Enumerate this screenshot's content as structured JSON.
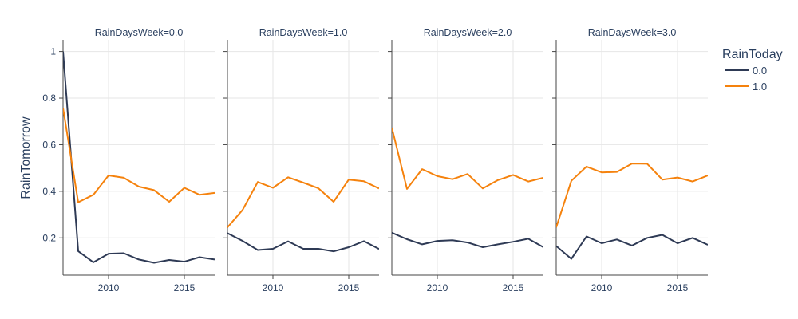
{
  "chart_data": {
    "type": "line",
    "ylabel": "RainTomorrow",
    "xlim": [
      2007,
      2017
    ],
    "ylim": [
      0.04,
      1.05
    ],
    "x_ticks": [
      2010,
      2015
    ],
    "y_ticks": [
      0.2,
      0.4,
      0.6,
      0.8,
      1
    ],
    "y_tick_labels": [
      "0.2",
      "0.4",
      "0.6",
      "0.8",
      "1"
    ],
    "x_tick_labels": [
      "2010",
      "2015"
    ],
    "grid": true,
    "legend": {
      "title": "RainToday",
      "placement": "top-right",
      "entries": [
        "0.0",
        "1.0"
      ]
    },
    "colors": {
      "0.0": "#2e3a55",
      "1.0": "#f5820d"
    },
    "x": [
      2007,
      2008,
      2009,
      2010,
      2011,
      2012,
      2013,
      2014,
      2015,
      2016,
      2017
    ],
    "facets": [
      {
        "title": "RainDaysWeek=0.0",
        "series": [
          {
            "name": "0.0",
            "values": [
              1.0,
              0.143,
              0.095,
              0.132,
              0.134,
              0.107,
              0.093,
              0.105,
              0.098,
              0.117,
              0.107
            ]
          },
          {
            "name": "1.0",
            "values": [
              0.757,
              0.353,
              0.385,
              0.468,
              0.458,
              0.42,
              0.405,
              0.355,
              0.415,
              0.385,
              0.393
            ]
          }
        ]
      },
      {
        "title": "RainDaysWeek=1.0",
        "series": [
          {
            "name": "0.0",
            "values": [
              0.22,
              0.187,
              0.148,
              0.153,
              0.185,
              0.153,
              0.153,
              0.142,
              0.16,
              0.186,
              0.152
            ]
          },
          {
            "name": "1.0",
            "values": [
              0.245,
              0.32,
              0.44,
              0.415,
              0.46,
              0.437,
              0.413,
              0.355,
              0.45,
              0.443,
              0.412
            ]
          }
        ]
      },
      {
        "title": "RainDaysWeek=2.0",
        "series": [
          {
            "name": "0.0",
            "values": [
              0.222,
              0.194,
              0.172,
              0.187,
              0.19,
              0.18,
              0.16,
              0.172,
              0.183,
              0.196,
              0.16
            ]
          },
          {
            "name": "1.0",
            "values": [
              0.673,
              0.41,
              0.495,
              0.465,
              0.452,
              0.474,
              0.412,
              0.448,
              0.47,
              0.442,
              0.458
            ]
          }
        ]
      },
      {
        "title": "RainDaysWeek=3.0",
        "series": [
          {
            "name": "0.0",
            "values": [
              0.165,
              0.11,
              0.206,
              0.177,
              0.193,
              0.167,
              0.2,
              0.213,
              0.177,
              0.2,
              0.17
            ]
          },
          {
            "name": "1.0",
            "values": [
              0.245,
              0.445,
              0.506,
              0.481,
              0.483,
              0.519,
              0.518,
              0.45,
              0.459,
              0.442,
              0.468
            ]
          }
        ]
      }
    ]
  }
}
